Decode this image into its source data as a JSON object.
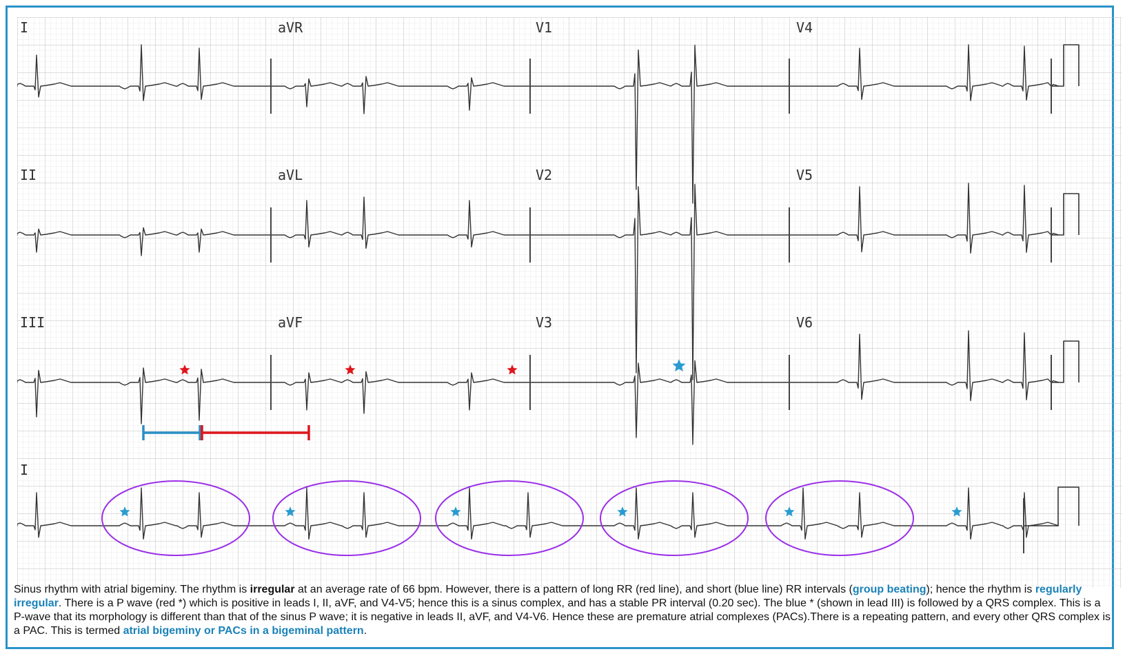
{
  "leads": {
    "row1": [
      "I",
      "aVR",
      "V1",
      "V4"
    ],
    "row2": [
      "II",
      "aVL",
      "V2",
      "V5"
    ],
    "row3": [
      "III",
      "aVF",
      "V3",
      "V6"
    ],
    "rhythm": "I"
  },
  "intervals": [
    {
      "kind": "short RR",
      "color": "#2a8fc4"
    },
    {
      "kind": "long RR",
      "color": "#e0151b"
    }
  ],
  "markers": {
    "sinus_p_color": "#e0151b",
    "pac_color": "#2a9bd0",
    "bigeminal_group_color": "#9b30e8",
    "bigeminal_group_count": 5
  },
  "caption": {
    "t1": "Sinus rhythm with atrial bigeminy. The rhythm is ",
    "b1": "irregular",
    "t2": " at an average rate of 66 bpm. However, there is a pattern of long RR (red line), and short (blue line) RR intervals (",
    "h1": "group beating",
    "t3": "); hence the rhythm is ",
    "h2": "regularly irregular",
    "t4": ". There is a P wave (red *) which is positive in leads I, II, aVF, and V4-V5; hence this is a sinus complex, and has a stable PR interval (0.20 sec). The blue * (shown in lead III) is followed by a QRS complex. This is a P-wave that its morphology is different than that of the sinus P wave; it is negative in leads II, aVF, and V4-V6. Hence these are premature atrial complexes (PACs).There is a repeating pattern, and every other QRS complex is a PAC. This is termed ",
    "h3": "atrial bigeminy or PACs in a bigeminal pattern",
    "t5": "."
  }
}
